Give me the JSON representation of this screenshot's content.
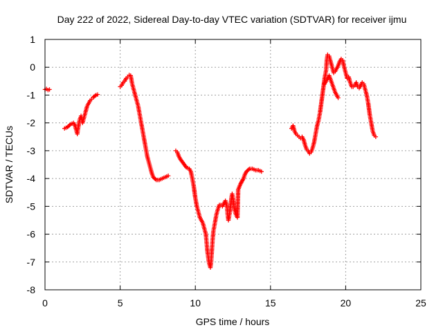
{
  "chart_data": {
    "type": "scatter",
    "title": "Day 222 of 2022, Sidereal Day-to-day VTEC variation (SDTVAR) for receiver ijmu",
    "xlabel": "GPS time / hours",
    "ylabel": "SDTVAR / TECUs",
    "xlim": [
      0,
      25
    ],
    "ylim": [
      -8,
      1
    ],
    "xticks": [
      "0",
      "5",
      "10",
      "15",
      "20",
      "25"
    ],
    "yticks": [
      "1",
      "0",
      "-1",
      "-2",
      "-3",
      "-4",
      "-5",
      "-6",
      "-7",
      "-8"
    ],
    "grid": true,
    "marker": "plus",
    "color": "#ff0000",
    "series": [
      {
        "name": "SDTVAR",
        "segments": [
          [
            [
              0.0,
              -0.8
            ],
            [
              0.1,
              -0.78
            ],
            [
              0.2,
              -0.82
            ],
            [
              0.3,
              -0.8
            ]
          ],
          [
            [
              1.3,
              -2.2
            ],
            [
              1.5,
              -2.15
            ],
            [
              1.7,
              -2.05
            ],
            [
              1.9,
              -2.0
            ],
            [
              2.0,
              -2.1
            ],
            [
              2.1,
              -2.3
            ],
            [
              2.15,
              -2.4
            ],
            [
              2.2,
              -2.2
            ],
            [
              2.3,
              -1.9
            ],
            [
              2.4,
              -1.75
            ],
            [
              2.5,
              -2.0
            ],
            [
              2.6,
              -1.8
            ],
            [
              2.7,
              -1.6
            ],
            [
              2.8,
              -1.4
            ],
            [
              2.9,
              -1.3
            ],
            [
              3.0,
              -1.2
            ],
            [
              3.1,
              -1.15
            ],
            [
              3.2,
              -1.08
            ],
            [
              3.4,
              -1.0
            ],
            [
              3.5,
              -0.98
            ]
          ],
          [
            [
              5.0,
              -0.7
            ],
            [
              5.1,
              -0.65
            ],
            [
              5.2,
              -0.55
            ],
            [
              5.3,
              -0.5
            ],
            [
              5.4,
              -0.4
            ],
            [
              5.5,
              -0.35
            ],
            [
              5.6,
              -0.28
            ],
            [
              5.7,
              -0.3
            ],
            [
              5.75,
              -0.45
            ],
            [
              5.8,
              -0.6
            ],
            [
              5.9,
              -0.8
            ],
            [
              6.0,
              -1.0
            ],
            [
              6.1,
              -1.2
            ],
            [
              6.2,
              -1.4
            ],
            [
              6.3,
              -1.7
            ],
            [
              6.4,
              -2.0
            ],
            [
              6.5,
              -2.3
            ],
            [
              6.6,
              -2.6
            ],
            [
              6.7,
              -2.9
            ],
            [
              6.8,
              -3.2
            ],
            [
              6.9,
              -3.4
            ],
            [
              7.0,
              -3.6
            ],
            [
              7.1,
              -3.8
            ],
            [
              7.2,
              -3.95
            ],
            [
              7.4,
              -4.05
            ],
            [
              7.6,
              -4.05
            ],
            [
              7.8,
              -4.0
            ],
            [
              8.0,
              -3.95
            ],
            [
              8.2,
              -3.9
            ]
          ],
          [
            [
              8.7,
              -3.0
            ],
            [
              8.8,
              -3.05
            ],
            [
              8.9,
              -3.2
            ],
            [
              9.0,
              -3.3
            ],
            [
              9.2,
              -3.45
            ],
            [
              9.4,
              -3.6
            ],
            [
              9.6,
              -3.65
            ],
            [
              9.7,
              -3.75
            ],
            [
              9.8,
              -4.0
            ],
            [
              9.9,
              -4.3
            ],
            [
              10.0,
              -4.7
            ],
            [
              10.1,
              -5.0
            ],
            [
              10.2,
              -5.2
            ],
            [
              10.3,
              -5.4
            ],
            [
              10.4,
              -5.5
            ],
            [
              10.5,
              -5.6
            ],
            [
              10.6,
              -5.8
            ],
            [
              10.7,
              -6.0
            ],
            [
              10.75,
              -6.3
            ],
            [
              10.8,
              -6.6
            ],
            [
              10.85,
              -6.8
            ],
            [
              10.9,
              -7.0
            ],
            [
              10.95,
              -7.1
            ],
            [
              11.0,
              -7.2
            ],
            [
              11.05,
              -7.0
            ],
            [
              11.1,
              -6.6
            ],
            [
              11.15,
              -6.2
            ],
            [
              11.2,
              -5.9
            ],
            [
              11.3,
              -5.6
            ],
            [
              11.4,
              -5.3
            ],
            [
              11.5,
              -5.1
            ],
            [
              11.6,
              -4.95
            ],
            [
              11.7,
              -4.95
            ],
            [
              11.8,
              -5.0
            ],
            [
              11.9,
              -4.9
            ],
            [
              12.0,
              -4.8
            ],
            [
              12.1,
              -5.0
            ],
            [
              12.15,
              -5.3
            ],
            [
              12.2,
              -5.5
            ],
            [
              12.3,
              -5.2
            ],
            [
              12.4,
              -4.7
            ],
            [
              12.45,
              -4.55
            ],
            [
              12.5,
              -4.7
            ],
            [
              12.6,
              -5.1
            ],
            [
              12.7,
              -5.3
            ],
            [
              12.8,
              -5.4
            ],
            [
              12.85,
              -4.4
            ],
            [
              13.0,
              -4.2
            ],
            [
              13.2,
              -4.0
            ],
            [
              13.3,
              -3.85
            ],
            [
              13.4,
              -3.75
            ],
            [
              13.6,
              -3.65
            ],
            [
              13.8,
              -3.65
            ],
            [
              14.0,
              -3.7
            ],
            [
              14.2,
              -3.7
            ],
            [
              14.4,
              -3.75
            ]
          ],
          [
            [
              16.4,
              -2.2
            ],
            [
              16.5,
              -2.1
            ],
            [
              16.6,
              -2.3
            ],
            [
              16.7,
              -2.4
            ],
            [
              16.8,
              -2.45
            ],
            [
              16.9,
              -2.5
            ],
            [
              17.0,
              -2.55
            ],
            [
              17.1,
              -2.5
            ],
            [
              17.2,
              -2.6
            ],
            [
              17.3,
              -2.8
            ],
            [
              17.4,
              -2.95
            ],
            [
              17.5,
              -3.0
            ],
            [
              17.6,
              -3.1
            ],
            [
              17.7,
              -3.05
            ],
            [
              17.8,
              -2.9
            ],
            [
              17.9,
              -2.7
            ],
            [
              18.0,
              -2.4
            ],
            [
              18.1,
              -2.1
            ],
            [
              18.2,
              -1.9
            ],
            [
              18.3,
              -1.6
            ],
            [
              18.4,
              -1.2
            ],
            [
              18.5,
              -0.8
            ],
            [
              18.6,
              -0.4
            ],
            [
              18.7,
              -0.1
            ],
            [
              18.75,
              0.3
            ],
            [
              18.8,
              0.45
            ],
            [
              18.9,
              0.4
            ],
            [
              19.0,
              0.2
            ],
            [
              19.1,
              0.0
            ],
            [
              19.2,
              -0.2
            ],
            [
              19.3,
              -0.15
            ],
            [
              19.4,
              -0.05
            ],
            [
              19.5,
              0.05
            ],
            [
              19.6,
              0.2
            ],
            [
              19.7,
              0.3
            ],
            [
              19.8,
              0.25
            ],
            [
              19.9,
              0.0
            ],
            [
              20.0,
              -0.2
            ],
            [
              20.1,
              -0.4
            ],
            [
              20.2,
              -0.35
            ],
            [
              20.3,
              -0.55
            ],
            [
              20.4,
              -0.7
            ],
            [
              20.5,
              -0.7
            ],
            [
              20.6,
              -0.65
            ],
            [
              20.7,
              -0.55
            ],
            [
              20.8,
              -0.7
            ],
            [
              20.9,
              -0.75
            ],
            [
              21.0,
              -0.65
            ],
            [
              21.1,
              -0.55
            ],
            [
              21.2,
              -0.6
            ],
            [
              21.3,
              -0.8
            ],
            [
              21.4,
              -1.0
            ],
            [
              21.5,
              -1.3
            ],
            [
              21.6,
              -1.7
            ],
            [
              21.7,
              -2.0
            ],
            [
              21.8,
              -2.3
            ],
            [
              21.9,
              -2.45
            ],
            [
              22.0,
              -2.5
            ]
          ],
          [
            [
              18.6,
              -0.6
            ],
            [
              18.7,
              -0.5
            ],
            [
              18.8,
              -0.4
            ],
            [
              18.9,
              -0.3
            ],
            [
              19.0,
              -0.45
            ],
            [
              19.1,
              -0.6
            ],
            [
              19.2,
              -0.75
            ],
            [
              19.3,
              -0.9
            ],
            [
              19.4,
              -1.0
            ],
            [
              19.5,
              -1.1
            ]
          ]
        ]
      }
    ]
  }
}
